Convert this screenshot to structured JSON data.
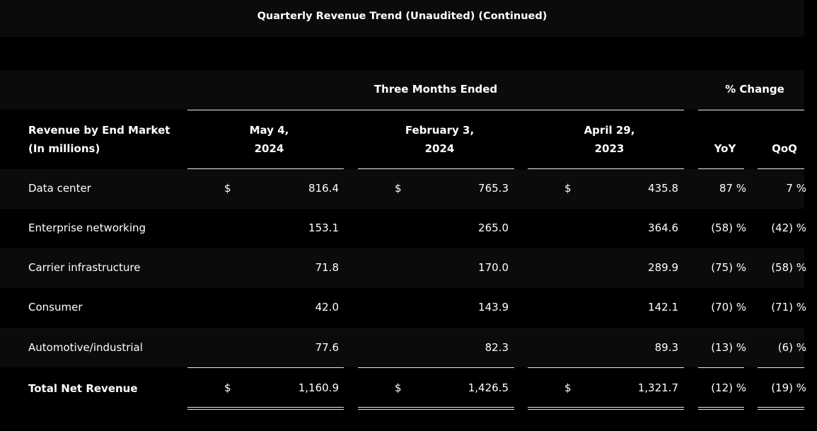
{
  "title": "Quarterly Revenue Trend (Unaudited) (Continued)",
  "header": {
    "group_label": "Three Months Ended",
    "change_label": "% Change",
    "row_label_line1": "Revenue by End Market",
    "row_label_line2": "(In millions)",
    "periods": [
      {
        "line1": "May 4,",
        "line2": "2024"
      },
      {
        "line1": "February 3,",
        "line2": "2024"
      },
      {
        "line1": "April 29,",
        "line2": "2023"
      }
    ],
    "yoy": "YoY",
    "qoq": "QoQ"
  },
  "currency_symbol": "$",
  "rows": [
    {
      "label": "Data center",
      "values": [
        "816.4",
        "765.3",
        "435.8"
      ],
      "yoy": "87 %",
      "qoq": "7 %"
    },
    {
      "label": "Enterprise networking",
      "values": [
        "153.1",
        "265.0",
        "364.6"
      ],
      "yoy": "(58) %",
      "qoq": "(42) %"
    },
    {
      "label": "Carrier infrastructure",
      "values": [
        "71.8",
        "170.0",
        "289.9"
      ],
      "yoy": "(75) %",
      "qoq": "(58) %"
    },
    {
      "label": "Consumer",
      "values": [
        "42.0",
        "143.9",
        "142.1"
      ],
      "yoy": "(70) %",
      "qoq": "(71) %"
    },
    {
      "label": "Automotive/industrial",
      "values": [
        "77.6",
        "82.3",
        "89.3"
      ],
      "yoy": "(13) %",
      "qoq": "(6) %"
    }
  ],
  "total": {
    "label": "Total Net Revenue",
    "values": [
      "1,160.9",
      "1,426.5",
      "1,321.7"
    ],
    "yoy": "(12) %",
    "qoq": "(19) %"
  }
}
